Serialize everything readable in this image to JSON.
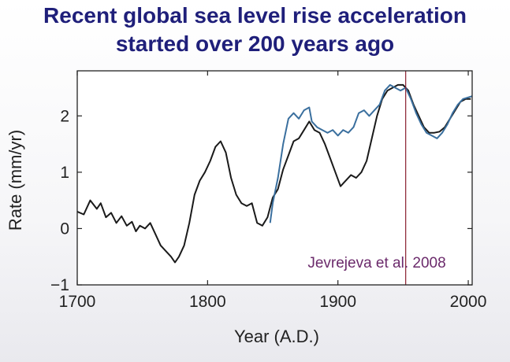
{
  "title_lines": [
    "Recent global sea level rise acceleration",
    "started over 200 years ago"
  ],
  "chart_data": {
    "type": "line",
    "xlabel": "Year (A.D.)",
    "ylabel": "Rate (mm/yr)",
    "xlim": [
      1700,
      2003
    ],
    "ylim": [
      -1,
      2.8
    ],
    "xticks": [
      1700,
      1800,
      1900,
      2000
    ],
    "yticks": [
      -1,
      0,
      1,
      2
    ],
    "grid": false,
    "annotation": "Jevrejeva et al. 2008",
    "annotation_color": "#6b2a6b",
    "vertical_marker": {
      "x": 1952,
      "color": "#8a1f2f"
    },
    "series": [
      {
        "color": "#1a1a1a",
        "points": [
          [
            1700,
            0.3
          ],
          [
            1705,
            0.25
          ],
          [
            1710,
            0.5
          ],
          [
            1715,
            0.35
          ],
          [
            1718,
            0.45
          ],
          [
            1722,
            0.2
          ],
          [
            1726,
            0.28
          ],
          [
            1730,
            0.1
          ],
          [
            1734,
            0.22
          ],
          [
            1738,
            0.05
          ],
          [
            1742,
            0.12
          ],
          [
            1745,
            -0.05
          ],
          [
            1748,
            0.05
          ],
          [
            1752,
            0.0
          ],
          [
            1756,
            0.1
          ],
          [
            1760,
            -0.1
          ],
          [
            1764,
            -0.3
          ],
          [
            1768,
            -0.4
          ],
          [
            1772,
            -0.5
          ],
          [
            1775,
            -0.6
          ],
          [
            1778,
            -0.5
          ],
          [
            1782,
            -0.3
          ],
          [
            1786,
            0.1
          ],
          [
            1790,
            0.6
          ],
          [
            1794,
            0.85
          ],
          [
            1798,
            1.0
          ],
          [
            1802,
            1.2
          ],
          [
            1806,
            1.45
          ],
          [
            1810,
            1.55
          ],
          [
            1814,
            1.35
          ],
          [
            1818,
            0.9
          ],
          [
            1822,
            0.6
          ],
          [
            1826,
            0.45
          ],
          [
            1830,
            0.4
          ],
          [
            1834,
            0.45
          ],
          [
            1838,
            0.1
          ],
          [
            1842,
            0.05
          ],
          [
            1846,
            0.2
          ],
          [
            1850,
            0.55
          ],
          [
            1854,
            0.7
          ],
          [
            1858,
            1.05
          ],
          [
            1862,
            1.3
          ],
          [
            1866,
            1.55
          ],
          [
            1870,
            1.6
          ],
          [
            1874,
            1.75
          ],
          [
            1878,
            1.9
          ],
          [
            1882,
            1.75
          ],
          [
            1886,
            1.7
          ],
          [
            1890,
            1.5
          ],
          [
            1894,
            1.25
          ],
          [
            1898,
            1.0
          ],
          [
            1902,
            0.75
          ],
          [
            1906,
            0.85
          ],
          [
            1910,
            0.95
          ],
          [
            1914,
            0.9
          ],
          [
            1918,
            1.0
          ],
          [
            1922,
            1.2
          ],
          [
            1926,
            1.6
          ],
          [
            1930,
            2.0
          ],
          [
            1934,
            2.3
          ],
          [
            1938,
            2.45
          ],
          [
            1942,
            2.5
          ],
          [
            1946,
            2.55
          ],
          [
            1950,
            2.55
          ],
          [
            1954,
            2.45
          ],
          [
            1958,
            2.2
          ],
          [
            1962,
            2.0
          ],
          [
            1966,
            1.8
          ],
          [
            1970,
            1.7
          ],
          [
            1974,
            1.7
          ],
          [
            1978,
            1.72
          ],
          [
            1982,
            1.8
          ],
          [
            1986,
            1.95
          ],
          [
            1990,
            2.1
          ],
          [
            1994,
            2.25
          ],
          [
            1998,
            2.3
          ],
          [
            2002,
            2.3
          ]
        ]
      },
      {
        "color": "#3a6f9e",
        "points": [
          [
            1848,
            0.1
          ],
          [
            1850,
            0.45
          ],
          [
            1854,
            0.9
          ],
          [
            1858,
            1.5
          ],
          [
            1862,
            1.95
          ],
          [
            1866,
            2.05
          ],
          [
            1870,
            1.95
          ],
          [
            1874,
            2.1
          ],
          [
            1878,
            2.15
          ],
          [
            1880,
            1.9
          ],
          [
            1884,
            1.8
          ],
          [
            1888,
            1.75
          ],
          [
            1892,
            1.7
          ],
          [
            1896,
            1.75
          ],
          [
            1900,
            1.65
          ],
          [
            1904,
            1.75
          ],
          [
            1908,
            1.7
          ],
          [
            1912,
            1.8
          ],
          [
            1916,
            2.05
          ],
          [
            1920,
            2.1
          ],
          [
            1924,
            2.0
          ],
          [
            1928,
            2.1
          ],
          [
            1932,
            2.2
          ],
          [
            1936,
            2.45
          ],
          [
            1940,
            2.55
          ],
          [
            1944,
            2.5
          ],
          [
            1948,
            2.45
          ],
          [
            1952,
            2.5
          ],
          [
            1956,
            2.3
          ],
          [
            1960,
            2.05
          ],
          [
            1964,
            1.85
          ],
          [
            1968,
            1.7
          ],
          [
            1972,
            1.65
          ],
          [
            1976,
            1.6
          ],
          [
            1980,
            1.7
          ],
          [
            1984,
            1.85
          ],
          [
            1988,
            2.05
          ],
          [
            1992,
            2.2
          ],
          [
            1996,
            2.3
          ],
          [
            2003,
            2.35
          ]
        ]
      }
    ]
  }
}
